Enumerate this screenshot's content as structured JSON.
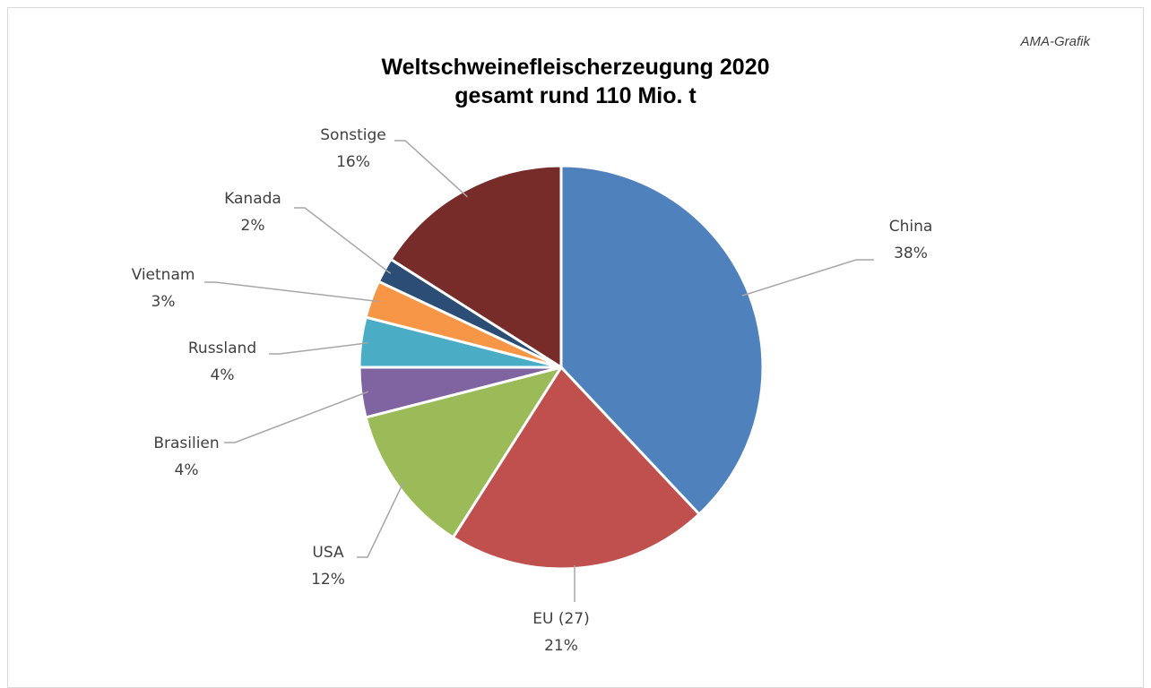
{
  "credit": "AMA-Grafik",
  "chart_data": {
    "type": "pie",
    "title": [
      "Weltschweinefleischerzeugung 2020",
      "gesamt rund 110 Mio. t"
    ],
    "slices": [
      {
        "label": "China",
        "value": 38,
        "value_label": "38%",
        "color": "#4f81bd"
      },
      {
        "label": "EU (27)",
        "value": 21,
        "value_label": "21%",
        "color": "#c0504d"
      },
      {
        "label": "USA",
        "value": 12,
        "value_label": "12%",
        "color": "#9bbb59"
      },
      {
        "label": "Brasilien",
        "value": 4,
        "value_label": "4%",
        "color": "#8064a2"
      },
      {
        "label": "Russland",
        "value": 4,
        "value_label": "4%",
        "color": "#4bacc6"
      },
      {
        "label": "Vietnam",
        "value": 3,
        "value_label": "3%",
        "color": "#f79646"
      },
      {
        "label": "Kanada",
        "value": 2,
        "value_label": "2%",
        "color": "#2c4d75"
      },
      {
        "label": "Sonstige",
        "value": 16,
        "value_label": "16%",
        "color": "#772c2a"
      }
    ]
  }
}
